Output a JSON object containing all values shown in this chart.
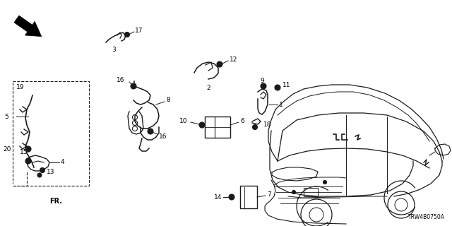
{
  "bg_color": "#ffffff",
  "line_color": "#1a1a1a",
  "diagram_code": "TRW4B0750A",
  "figsize": [
    6.4,
    3.2
  ],
  "dpi": 100
}
